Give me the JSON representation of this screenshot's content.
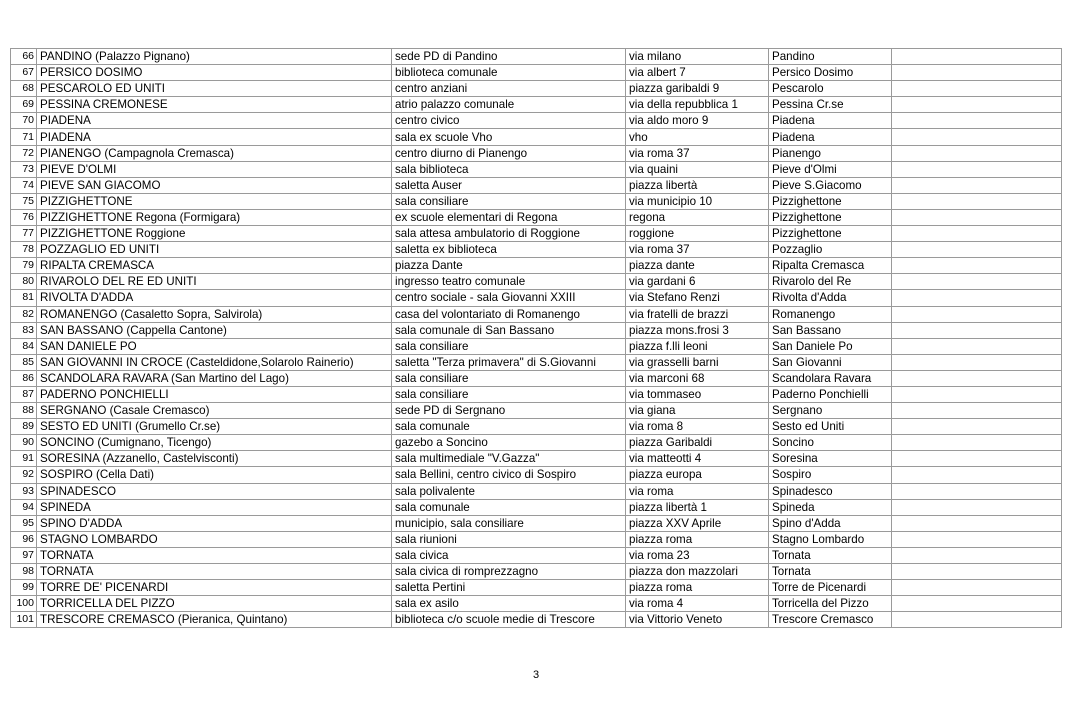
{
  "page_number": "3",
  "rows": [
    [
      "66",
      "PANDINO (Palazzo Pignano)",
      "sede PD di Pandino",
      "via milano",
      "Pandino"
    ],
    [
      "67",
      "PERSICO DOSIMO",
      "biblioteca comunale",
      "via albert 7",
      "Persico Dosimo"
    ],
    [
      "68",
      "PESCAROLO ED UNITI",
      "centro anziani",
      "piazza garibaldi 9",
      "Pescarolo"
    ],
    [
      "69",
      "PESSINA CREMONESE",
      "atrio palazzo comunale",
      "via della repubblica 1",
      "Pessina Cr.se"
    ],
    [
      "70",
      "PIADENA",
      "centro civico",
      "via aldo moro 9",
      "Piadena"
    ],
    [
      "71",
      "PIADENA",
      "sala ex scuole Vho",
      "vho",
      "Piadena"
    ],
    [
      "72",
      "PIANENGO (Campagnola Cremasca)",
      "centro diurno di Pianengo",
      "via roma 37",
      "Pianengo"
    ],
    [
      "73",
      "PIEVE D'OLMI",
      "sala biblioteca",
      "via quaini",
      "Pieve d'Olmi"
    ],
    [
      "74",
      "PIEVE SAN GIACOMO",
      "saletta Auser",
      "piazza libertà",
      "Pieve S.Giacomo"
    ],
    [
      "75",
      "PIZZIGHETTONE",
      "sala consiliare",
      "via municipio 10",
      "Pizzighettone"
    ],
    [
      "76",
      "PIZZIGHETTONE Regona (Formigara)",
      "ex scuole elementari di Regona",
      "regona",
      "Pizzighettone"
    ],
    [
      "77",
      "PIZZIGHETTONE Roggione",
      "sala attesa ambulatorio  di Roggione",
      "roggione",
      "Pizzighettone"
    ],
    [
      "78",
      "POZZAGLIO ED UNITI",
      "saletta ex biblioteca",
      "via roma 37",
      "Pozzaglio"
    ],
    [
      "79",
      "RIPALTA CREMASCA",
      "piazza Dante",
      "piazza dante",
      "Ripalta Cremasca"
    ],
    [
      "80",
      "RIVAROLO DEL RE ED UNITI",
      "ingresso teatro comunale",
      "via gardani 6",
      "Rivarolo del Re"
    ],
    [
      "81",
      "RIVOLTA D'ADDA",
      "centro sociale - sala Giovanni XXIII",
      "via Stefano Renzi",
      "Rivolta d'Adda"
    ],
    [
      "82",
      "ROMANENGO (Casaletto Sopra, Salvirola)",
      "casa del volontariato di Romanengo",
      "via fratelli de brazzi",
      "Romanengo"
    ],
    [
      "83",
      "SAN BASSANO (Cappella Cantone)",
      "sala comunale di San Bassano",
      "piazza mons.frosi 3",
      "San Bassano"
    ],
    [
      "84",
      "SAN DANIELE PO",
      "sala consiliare",
      "piazza f.lli leoni",
      "San Daniele Po"
    ],
    [
      "85",
      "SAN GIOVANNI IN CROCE (Casteldidone,Solarolo Rainerio)",
      "saletta \"Terza primavera\" di S.Giovanni",
      "via grasselli barni",
      "San Giovanni"
    ],
    [
      "86",
      "SCANDOLARA RAVARA (San Martino del Lago)",
      "sala consiliare",
      "via marconi 68",
      "Scandolara Ravara"
    ],
    [
      "87",
      "PADERNO PONCHIELLI",
      "sala consiliare",
      "via tommaseo",
      "Paderno Ponchielli"
    ],
    [
      "88",
      "SERGNANO (Casale Cremasco)",
      "sede PD di Sergnano",
      "via giana",
      "Sergnano"
    ],
    [
      "89",
      "SESTO ED UNITI (Grumello Cr.se)",
      "sala comunale",
      "via roma 8",
      "Sesto ed Uniti"
    ],
    [
      "90",
      "SONCINO (Cumignano, Ticengo)",
      "gazebo a Soncino",
      "piazza Garibaldi",
      "Soncino"
    ],
    [
      "91",
      "SORESINA (Azzanello, Castelvisconti)",
      "sala multimediale \"V.Gazza\"",
      "via matteotti 4",
      "Soresina"
    ],
    [
      "92",
      "SOSPIRO (Cella Dati)",
      "sala Bellini, centro civico di Sospiro",
      "piazza europa",
      "Sospiro"
    ],
    [
      "93",
      "SPINADESCO",
      "sala polivalente",
      "via roma",
      "Spinadesco"
    ],
    [
      "94",
      "SPINEDA",
      "sala comunale",
      "piazza libertà 1",
      "Spineda"
    ],
    [
      "95",
      "SPINO D'ADDA",
      "municipio, sala consiliare",
      "piazza XXV Aprile",
      "Spino d'Adda"
    ],
    [
      "96",
      "STAGNO LOMBARDO",
      "sala riunioni",
      "piazza roma",
      "Stagno Lombardo"
    ],
    [
      "97",
      "TORNATA",
      "sala civica",
      "via roma 23",
      "Tornata"
    ],
    [
      "98",
      "TORNATA",
      "sala civica di romprezzagno",
      "piazza don mazzolari",
      "Tornata"
    ],
    [
      "99",
      "TORRE DE' PICENARDI",
      "saletta Pertini",
      "piazza roma",
      "Torre de Picenardi"
    ],
    [
      "100",
      "TORRICELLA DEL PIZZO",
      "sala ex asilo",
      "via roma 4",
      "Torricella del Pizzo"
    ],
    [
      "101",
      "TRESCORE CREMASCO (Pieranica, Quintano)",
      "biblioteca c/o scuole medie di Trescore",
      "via Vittorio Veneto",
      "Trescore Cremasco"
    ]
  ]
}
